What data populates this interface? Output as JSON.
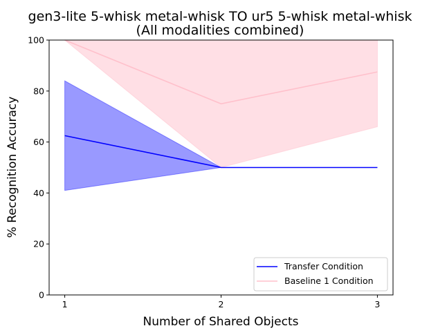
{
  "chart_data": {
    "type": "line",
    "title": "gen3-lite 5-whisk metal-whisk TO ur5 5-whisk metal-whisk",
    "subtitle": "(All modalities combined)",
    "xlabel": "Number of Shared Objects",
    "ylabel": "% Recognition Accuracy",
    "x": [
      1,
      2,
      3
    ],
    "xticks": [
      "1",
      "2",
      "3"
    ],
    "xlim": [
      0.9,
      3.1
    ],
    "ylim": [
      0,
      100
    ],
    "yticks": [
      "0",
      "20",
      "40",
      "60",
      "80",
      "100"
    ],
    "grid": false,
    "legend_position": "lower-right",
    "series": [
      {
        "name": "Transfer Condition",
        "values": [
          62.5,
          50,
          50
        ],
        "lower": [
          41,
          50,
          50
        ],
        "upper": [
          84,
          50,
          50
        ],
        "color": "#0000ff",
        "band_color": "#0000ff",
        "band_opacity": 0.4
      },
      {
        "name": "Baseline 1 Condition",
        "values": [
          100,
          75,
          87.5
        ],
        "lower": [
          100,
          50,
          66
        ],
        "upper": [
          100,
          100,
          100
        ],
        "color": "#ffc0cb",
        "band_color": "#ffc0cb",
        "band_opacity": 0.5
      }
    ]
  }
}
